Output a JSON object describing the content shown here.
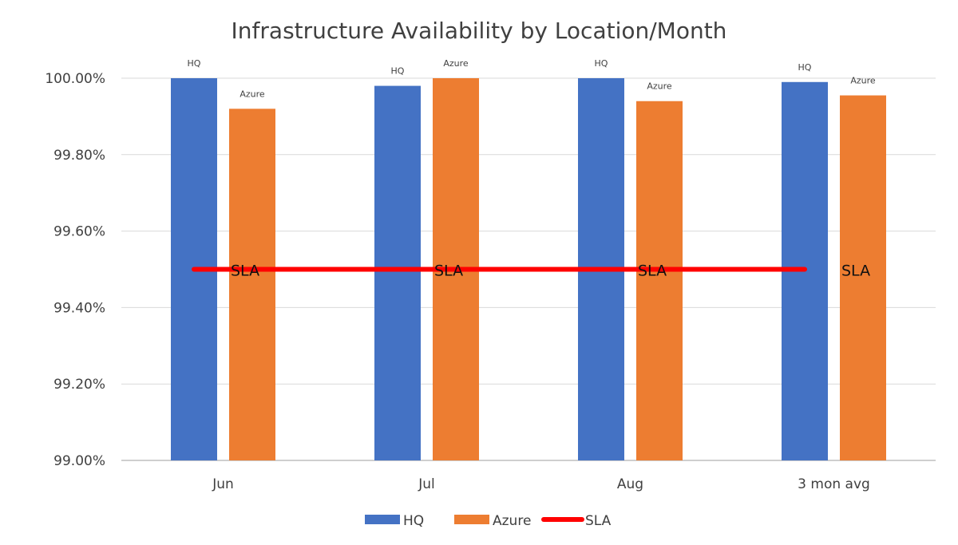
{
  "chart_data": {
    "type": "bar",
    "title": "Infrastructure Availability by Location/Month",
    "categories": [
      "Jun",
      "Jul",
      "Aug",
      "3 mon avg"
    ],
    "series": [
      {
        "name": "HQ",
        "type": "bar",
        "color": "#4472C4",
        "values": [
          100.0,
          99.98,
          100.0,
          99.99
        ]
      },
      {
        "name": "Azure",
        "type": "bar",
        "color": "#ED7D31",
        "values": [
          99.92,
          100.0,
          99.94,
          99.955
        ]
      },
      {
        "name": "SLA",
        "type": "line",
        "color": "#FF0000",
        "values": [
          99.5,
          99.5,
          99.5,
          99.5
        ]
      }
    ],
    "data_label_text": {
      "HQ": "HQ",
      "Azure": "Azure",
      "SLA": "SLA"
    },
    "ylim": [
      99.0,
      100.0
    ],
    "yticks": [
      99.0,
      99.2,
      99.4,
      99.6,
      99.8,
      100.0
    ],
    "ytick_labels": [
      "99.00%",
      "99.20%",
      "99.40%",
      "99.60%",
      "99.80%",
      "100.00%"
    ],
    "xlabel": "",
    "ylabel": "",
    "grid": true,
    "legend_position": "bottom"
  }
}
